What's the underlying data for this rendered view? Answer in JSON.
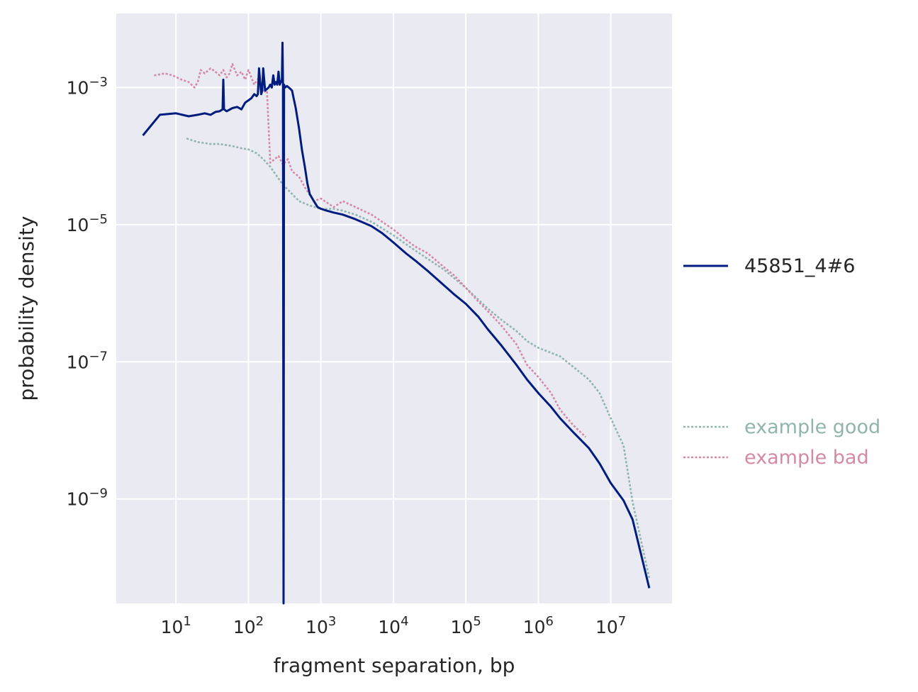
{
  "chart_data": {
    "type": "line",
    "xlabel": "fragment separation, bp",
    "ylabel": "probability density",
    "xscale": "log",
    "yscale": "log",
    "xlim": [
      1.5,
      70000000
    ],
    "ylim": [
      3e-11,
      0.012
    ],
    "grid": true,
    "legend_position": "right",
    "x_ticks": [
      {
        "value": 10,
        "base": "10",
        "exp": "1"
      },
      {
        "value": 100,
        "base": "10",
        "exp": "2"
      },
      {
        "value": 1000,
        "base": "10",
        "exp": "3"
      },
      {
        "value": 10000,
        "base": "10",
        "exp": "4"
      },
      {
        "value": 100000,
        "base": "10",
        "exp": "5"
      },
      {
        "value": 1000000,
        "base": "10",
        "exp": "6"
      },
      {
        "value": 10000000,
        "base": "10",
        "exp": "7"
      }
    ],
    "y_ticks": [
      {
        "value": 0.001,
        "base": "10",
        "exp": "−3"
      },
      {
        "value": 1e-05,
        "base": "10",
        "exp": "−5"
      },
      {
        "value": 1e-07,
        "base": "10",
        "exp": "−7"
      },
      {
        "value": 1e-09,
        "base": "10",
        "exp": "−9"
      }
    ],
    "series": [
      {
        "name": "45851_4#6",
        "style": "solid",
        "color": "#001c7f",
        "x": [
          3.5,
          6,
          10,
          15,
          20,
          25,
          30,
          35,
          40,
          44,
          45,
          46,
          50,
          60,
          70,
          80,
          90,
          100,
          110,
          120,
          130,
          135,
          140,
          150,
          155,
          160,
          170,
          180,
          190,
          200,
          210,
          220,
          230,
          240,
          250,
          260,
          270,
          280,
          290,
          295,
          300,
          305,
          310,
          320,
          340,
          360,
          380,
          400,
          420,
          450,
          500,
          550,
          600,
          650,
          700,
          800,
          900,
          1000,
          1200,
          1500,
          2000,
          3000,
          5000,
          7000,
          10000,
          15000,
          20000,
          30000,
          50000,
          70000,
          100000,
          150000,
          200000,
          300000,
          500000,
          700000,
          1000000,
          1500000,
          2000000,
          3000000,
          5000000,
          7000000,
          10000000,
          15000000,
          20000000,
          34000000
        ],
        "y": [
          0.0002,
          0.0004,
          0.00042,
          0.00038,
          0.0004,
          0.00042,
          0.0004,
          0.00044,
          0.00045,
          0.00048,
          0.0013,
          0.00048,
          0.00045,
          0.0005,
          0.00052,
          0.00048,
          0.0006,
          0.00065,
          0.0007,
          0.0008,
          0.00075,
          0.0008,
          0.0019,
          0.0008,
          0.0009,
          0.0019,
          0.0009,
          0.00095,
          0.001,
          0.0011,
          0.001,
          0.0015,
          0.0011,
          0.0012,
          0.0011,
          0.0017,
          0.0011,
          0.0012,
          0.0013,
          0.0045,
          0.0011,
          2e-11,
          0.0011,
          0.001,
          0.00105,
          0.001,
          0.00095,
          0.0009,
          0.0007,
          0.0005,
          0.00025,
          0.00012,
          7e-05,
          4e-05,
          2.8e-05,
          2.2e-05,
          1.8e-05,
          1.7e-05,
          1.6e-05,
          1.5e-05,
          1.4e-05,
          1.2e-05,
          9.5e-06,
          7.5e-06,
          5.5e-06,
          3.8e-06,
          3e-06,
          2.1e-06,
          1.3e-06,
          9.5e-07,
          7e-07,
          4.5e-07,
          3e-07,
          1.8e-07,
          9e-08,
          5.5e-08,
          3.5e-08,
          2.2e-08,
          1.5e-08,
          9.5e-09,
          5.5e-09,
          3.3e-09,
          1.7e-09,
          9.5e-10,
          5e-10,
          5e-11
        ]
      },
      {
        "name": "example good",
        "style": "dotted",
        "color": "#8fb5ac",
        "x": [
          14,
          20,
          30,
          40,
          60,
          80,
          100,
          130,
          160,
          200,
          250,
          300,
          400,
          500,
          700,
          1000,
          1500,
          2000,
          3000,
          5000,
          10000,
          20000,
          50000,
          100000,
          200000,
          300000,
          500000,
          700000,
          1000000,
          2000000,
          3000000,
          5000000,
          7000000,
          10000000,
          15000000,
          20000000,
          34000000
        ],
        "y": [
          0.00018,
          0.00016,
          0.00015,
          0.00015,
          0.00014,
          0.00013,
          0.000125,
          0.00011,
          9e-05,
          7e-05,
          5e-05,
          3.8e-05,
          2.8e-05,
          2.2e-05,
          1.9e-05,
          1.7e-05,
          1.7e-05,
          1.6e-05,
          1.4e-05,
          1.1e-05,
          7e-06,
          4.2e-06,
          2.2e-06,
          1.2e-06,
          6e-07,
          4.2e-07,
          2.8e-07,
          2e-07,
          1.6e-07,
          1.2e-07,
          8.5e-08,
          5.5e-08,
          3.5e-08,
          1.5e-08,
          6e-09,
          9e-10,
          7e-11
        ]
      },
      {
        "name": "example bad",
        "style": "dotted",
        "color": "#d48aa6",
        "x": [
          5,
          7,
          9,
          12,
          15,
          18,
          20,
          22,
          25,
          30,
          35,
          40,
          45,
          50,
          55,
          60,
          70,
          80,
          90,
          100,
          120,
          140,
          160,
          180,
          200,
          230,
          260,
          300,
          350,
          400,
          500,
          600,
          800,
          1000,
          1500,
          2000,
          3000,
          5000,
          7000,
          10000,
          15000,
          20000,
          30000,
          50000,
          70000,
          100000,
          150000,
          200000,
          300000,
          500000,
          700000,
          1000000,
          1500000,
          2000000,
          3000000,
          4500000
        ],
        "y": [
          0.0015,
          0.0016,
          0.0015,
          0.0013,
          0.0012,
          0.001,
          0.0012,
          0.0018,
          0.0016,
          0.0019,
          0.0017,
          0.0015,
          0.0018,
          0.0014,
          0.0016,
          0.0022,
          0.0015,
          0.0017,
          0.0013,
          0.0018,
          0.0011,
          0.0014,
          0.00085,
          0.0009,
          8e-05,
          9e-05,
          0.0001,
          7.5e-05,
          9e-05,
          6e-05,
          5e-05,
          3.5e-05,
          2.2e-05,
          2.4e-05,
          1.8e-05,
          2.2e-05,
          1.8e-05,
          1.4e-05,
          1.1e-05,
          8.5e-06,
          6e-06,
          4.8e-06,
          3.8e-06,
          2.4e-06,
          1.8e-06,
          1.2e-06,
          7.5e-07,
          5.5e-07,
          3.5e-07,
          1.8e-07,
          9e-08,
          6e-08,
          3.5e-08,
          2e-08,
          1.2e-08,
          8e-09
        ]
      }
    ]
  }
}
